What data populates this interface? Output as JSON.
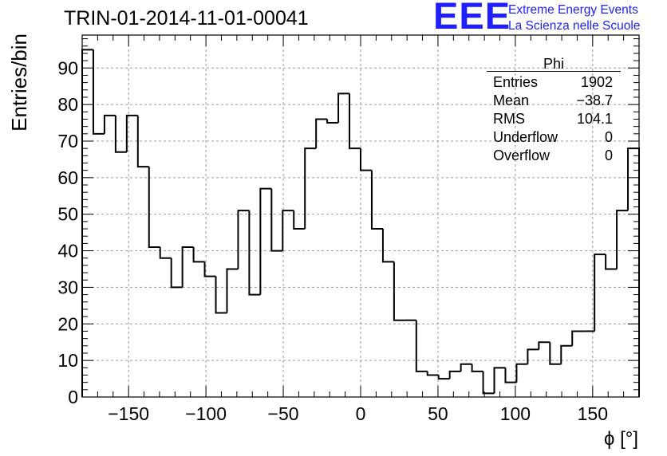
{
  "title": "TRIN-01-2014-11-01-00041",
  "logo": {
    "mark": "EEE",
    "line1": "Extreme Energy Events",
    "line2": "La Scienza nelle Scuole"
  },
  "stats": {
    "name": "Phi",
    "rows": [
      {
        "label": "Entries",
        "value": "1902"
      },
      {
        "label": "Mean",
        "value": "−38.7"
      },
      {
        "label": "RMS",
        "value": "104.1"
      },
      {
        "label": "Underflow",
        "value": "0"
      },
      {
        "label": "Overflow",
        "value": "0"
      }
    ]
  },
  "chart_data": {
    "type": "bar",
    "style": "step histogram",
    "xlabel": "ϕ [°]",
    "ylabel": "Entries/bin",
    "xlim": [
      -180,
      180
    ],
    "ylim": [
      0,
      99
    ],
    "grid": true,
    "bin_width": 7.2,
    "x_ticks": [
      -150,
      -100,
      -50,
      0,
      50,
      100,
      150
    ],
    "x_tick_labels": [
      "−150",
      "−100",
      "−50",
      "0",
      "50",
      "100",
      "150"
    ],
    "y_ticks": [
      0,
      10,
      20,
      30,
      40,
      50,
      60,
      70,
      80,
      90
    ],
    "y_tick_labels": [
      "0",
      "10",
      "20",
      "30",
      "40",
      "50",
      "60",
      "70",
      "80",
      "90"
    ],
    "values": [
      95,
      72,
      77,
      67,
      77,
      63,
      41,
      38,
      30,
      41,
      37,
      33,
      23,
      35,
      51,
      28,
      57,
      40,
      51,
      46,
      68,
      76,
      75,
      83,
      68,
      62,
      46,
      37,
      21,
      21,
      7,
      6,
      5,
      7,
      9,
      7,
      1,
      8,
      4,
      9,
      13,
      15,
      9,
      14,
      18,
      18,
      39,
      35,
      51,
      68
    ]
  }
}
